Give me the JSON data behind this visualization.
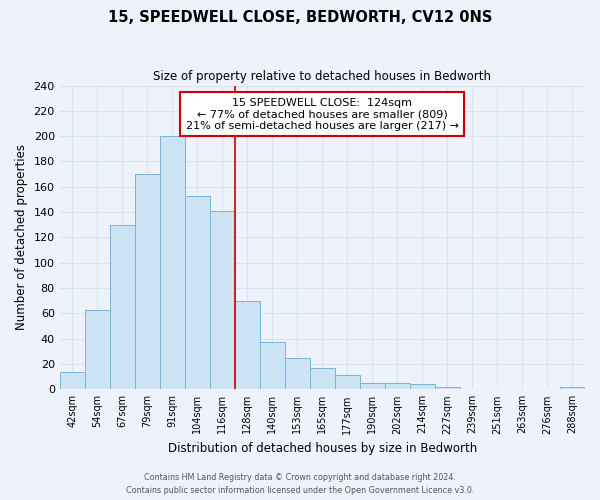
{
  "title": "15, SPEEDWELL CLOSE, BEDWORTH, CV12 0NS",
  "subtitle": "Size of property relative to detached houses in Bedworth",
  "xlabel": "Distribution of detached houses by size in Bedworth",
  "ylabel": "Number of detached properties",
  "bin_labels": [
    "42sqm",
    "54sqm",
    "67sqm",
    "79sqm",
    "91sqm",
    "104sqm",
    "116sqm",
    "128sqm",
    "140sqm",
    "153sqm",
    "165sqm",
    "177sqm",
    "190sqm",
    "202sqm",
    "214sqm",
    "227sqm",
    "239sqm",
    "251sqm",
    "263sqm",
    "276sqm",
    "288sqm"
  ],
  "bar_heights": [
    14,
    63,
    130,
    170,
    200,
    153,
    141,
    70,
    37,
    25,
    17,
    11,
    5,
    5,
    4,
    2,
    0,
    0,
    0,
    0,
    2
  ],
  "bar_color": "#cde4f5",
  "bar_edge_color": "#7ab4d8",
  "ylim": [
    0,
    240
  ],
  "yticks": [
    0,
    20,
    40,
    60,
    80,
    100,
    120,
    140,
    160,
    180,
    200,
    220,
    240
  ],
  "vline_color": "#cc0000",
  "vline_x_index": 7,
  "annotation_line1": "15 SPEEDWELL CLOSE:  124sqm",
  "annotation_line2": "← 77% of detached houses are smaller (809)",
  "annotation_line3": "21% of semi-detached houses are larger (217) →",
  "annotation_box_color": "#ffffff",
  "annotation_box_edge": "#cc0000",
  "footer_line1": "Contains HM Land Registry data © Crown copyright and database right 2024.",
  "footer_line2": "Contains public sector information licensed under the Open Government Licence v3.0.",
  "background_color": "#eef2fb",
  "grid_color": "#d8e4f0"
}
